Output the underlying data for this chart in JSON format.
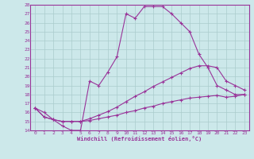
{
  "xlabel": "Windchill (Refroidissement éolien,°C)",
  "bg_color": "#cce8ea",
  "line_color": "#993399",
  "grid_color": "#aacccc",
  "xlim": [
    -0.5,
    23.5
  ],
  "ylim": [
    14,
    28
  ],
  "xticks": [
    0,
    1,
    2,
    3,
    4,
    5,
    6,
    7,
    8,
    9,
    10,
    11,
    12,
    13,
    14,
    15,
    16,
    17,
    18,
    19,
    20,
    21,
    22,
    23
  ],
  "yticks": [
    14,
    15,
    16,
    17,
    18,
    19,
    20,
    21,
    22,
    23,
    24,
    25,
    26,
    27,
    28
  ],
  "line1_x": [
    0,
    1,
    2,
    3,
    4,
    5,
    6,
    7,
    8,
    9,
    10,
    11,
    12,
    13,
    14,
    15,
    16,
    17,
    18,
    19,
    20,
    21,
    22,
    23
  ],
  "line1_y": [
    16.5,
    16.0,
    15.2,
    14.5,
    14.0,
    14.0,
    19.5,
    19.0,
    20.5,
    22.2,
    27.0,
    26.5,
    27.8,
    27.8,
    27.8,
    27.0,
    26.0,
    25.0,
    22.5,
    21.0,
    19.0,
    18.5,
    18.0,
    18.0
  ],
  "line2_x": [
    0,
    1,
    2,
    3,
    4,
    5,
    6,
    7,
    8,
    9,
    10,
    11,
    12,
    13,
    14,
    15,
    16,
    17,
    18,
    19,
    20,
    21,
    22,
    23
  ],
  "line2_y": [
    16.5,
    15.5,
    15.2,
    15.0,
    15.0,
    15.0,
    15.3,
    15.7,
    16.1,
    16.6,
    17.2,
    17.8,
    18.3,
    18.9,
    19.4,
    19.9,
    20.4,
    20.9,
    21.2,
    21.2,
    21.0,
    19.5,
    19.0,
    18.5
  ],
  "line3_x": [
    0,
    1,
    2,
    3,
    4,
    5,
    6,
    7,
    8,
    9,
    10,
    11,
    12,
    13,
    14,
    15,
    16,
    17,
    18,
    19,
    20,
    21,
    22,
    23
  ],
  "line3_y": [
    16.5,
    15.5,
    15.2,
    15.0,
    15.0,
    15.0,
    15.1,
    15.3,
    15.5,
    15.7,
    16.0,
    16.2,
    16.5,
    16.7,
    17.0,
    17.2,
    17.4,
    17.6,
    17.7,
    17.8,
    17.9,
    17.7,
    17.8,
    18.0
  ]
}
